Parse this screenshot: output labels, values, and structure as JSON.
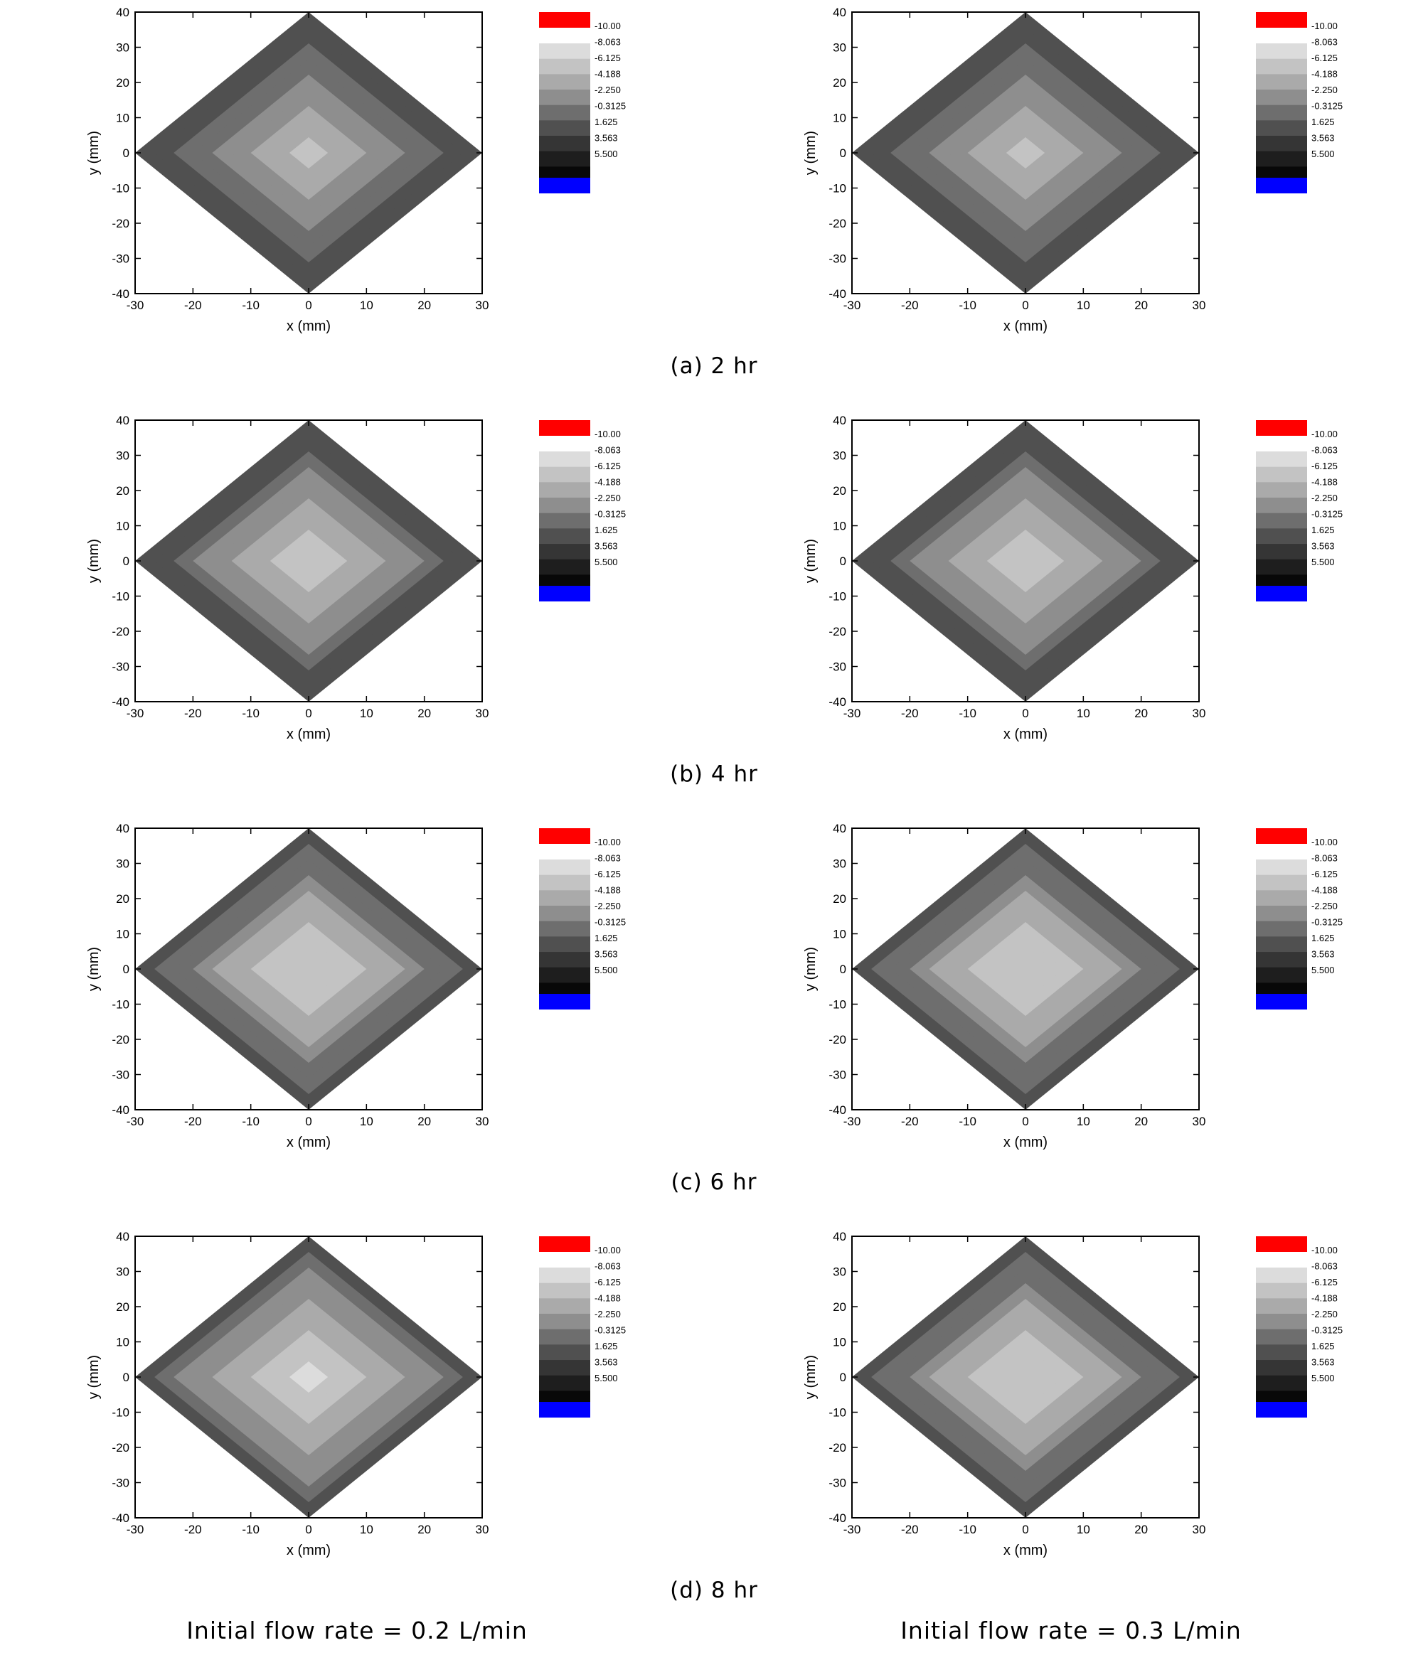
{
  "panels": [
    {
      "caption": "(a) 2 hr"
    },
    {
      "caption": "(b) 4 hr"
    },
    {
      "caption": "(c) 6 hr"
    },
    {
      "caption": "(d) 8 hr"
    }
  ],
  "footer": {
    "left": "Initial flow rate = 0.2 L/min",
    "right": "Initial flow rate = 0.3 L/min"
  },
  "legend": {
    "labels": [
      "-10.00",
      "-8.063",
      "-6.125",
      "-4.188",
      "-2.250",
      "-0.3125",
      "1.625",
      "3.563",
      "5.500"
    ],
    "top_color": "#ff0000",
    "bottom_color": "#0000ff",
    "gray_bands": [
      "#dcdcdc",
      "#c3c3c3",
      "#aaaaaa",
      "#8e8e8e",
      "#6e6e6e",
      "#505050",
      "#353535",
      "#1e1e1e",
      "#080808"
    ]
  },
  "chart_data": [
    {
      "type": "contour",
      "time": "2 hr",
      "flow_rate": "0.2 L/min",
      "xlabel": "x (mm)",
      "ylabel": "y (mm)",
      "xlim": [
        -30,
        30
      ],
      "ylim": [
        -40,
        40
      ],
      "xticks": [
        -30,
        -20,
        -10,
        0,
        10,
        20,
        30
      ],
      "yticks": [
        -40,
        -30,
        -20,
        -10,
        0,
        10,
        20,
        30,
        40
      ],
      "center_value": -6.5,
      "rim_value": 2.0,
      "contour_levels": [
        -10.0,
        -8.063,
        -6.125,
        -4.188,
        -2.25,
        -0.3125,
        1.625,
        3.563,
        5.5
      ]
    },
    {
      "type": "contour",
      "time": "2 hr",
      "flow_rate": "0.3 L/min",
      "xlabel": "x (mm)",
      "ylabel": "y (mm)",
      "xlim": [
        -30,
        30
      ],
      "ylim": [
        -40,
        40
      ],
      "xticks": [
        -30,
        -20,
        -10,
        0,
        10,
        20,
        30
      ],
      "yticks": [
        -40,
        -30,
        -20,
        -10,
        0,
        10,
        20,
        30,
        40
      ],
      "center_value": -6.5,
      "rim_value": 2.0,
      "contour_levels": [
        -10.0,
        -8.063,
        -6.125,
        -4.188,
        -2.25,
        -0.3125,
        1.625,
        3.563,
        5.5
      ]
    },
    {
      "type": "contour",
      "time": "4 hr",
      "flow_rate": "0.2 L/min",
      "xlabel": "x (mm)",
      "ylabel": "y (mm)",
      "xlim": [
        -30,
        30
      ],
      "ylim": [
        -40,
        40
      ],
      "xticks": [
        -30,
        -20,
        -10,
        0,
        10,
        20,
        30
      ],
      "yticks": [
        -40,
        -30,
        -20,
        -10,
        0,
        10,
        20,
        30,
        40
      ],
      "center_value": -7.5,
      "rim_value": 1.8,
      "contour_levels": [
        -10.0,
        -8.063,
        -6.125,
        -4.188,
        -2.25,
        -0.3125,
        1.625,
        3.563,
        5.5
      ]
    },
    {
      "type": "contour",
      "time": "4 hr",
      "flow_rate": "0.3 L/min",
      "xlabel": "x (mm)",
      "ylabel": "y (mm)",
      "xlim": [
        -30,
        30
      ],
      "ylim": [
        -40,
        40
      ],
      "xticks": [
        -30,
        -20,
        -10,
        0,
        10,
        20,
        30
      ],
      "yticks": [
        -40,
        -30,
        -20,
        -10,
        0,
        10,
        20,
        30,
        40
      ],
      "center_value": -7.5,
      "rim_value": 1.8,
      "contour_levels": [
        -10.0,
        -8.063,
        -6.125,
        -4.188,
        -2.25,
        -0.3125,
        1.625,
        3.563,
        5.5
      ]
    },
    {
      "type": "contour",
      "time": "6 hr",
      "flow_rate": "0.2 L/min",
      "xlabel": "x (mm)",
      "ylabel": "y (mm)",
      "xlim": [
        -30,
        30
      ],
      "ylim": [
        -40,
        40
      ],
      "xticks": [
        -30,
        -20,
        -10,
        0,
        10,
        20,
        30
      ],
      "yticks": [
        -40,
        -30,
        -20,
        -10,
        0,
        10,
        20,
        30,
        40
      ],
      "center_value": -8.0,
      "rim_value": 1.0,
      "contour_levels": [
        -10.0,
        -8.063,
        -6.125,
        -4.188,
        -2.25,
        -0.3125,
        1.625,
        3.563,
        5.5
      ]
    },
    {
      "type": "contour",
      "time": "6 hr",
      "flow_rate": "0.3 L/min",
      "xlabel": "x (mm)",
      "ylabel": "y (mm)",
      "xlim": [
        -30,
        30
      ],
      "ylim": [
        -40,
        40
      ],
      "xticks": [
        -30,
        -20,
        -10,
        0,
        10,
        20,
        30
      ],
      "yticks": [
        -40,
        -30,
        -20,
        -10,
        0,
        10,
        20,
        30,
        40
      ],
      "center_value": -8.0,
      "rim_value": 1.0,
      "contour_levels": [
        -10.0,
        -8.063,
        -6.125,
        -4.188,
        -2.25,
        -0.3125,
        1.625,
        3.563,
        5.5
      ]
    },
    {
      "type": "contour",
      "time": "8 hr",
      "flow_rate": "0.2 L/min",
      "xlabel": "x (mm)",
      "ylabel": "y (mm)",
      "xlim": [
        -30,
        30
      ],
      "ylim": [
        -40,
        40
      ],
      "xticks": [
        -30,
        -20,
        -10,
        0,
        10,
        20,
        30
      ],
      "yticks": [
        -40,
        -30,
        -20,
        -10,
        0,
        10,
        20,
        30,
        40
      ],
      "center_value": -9.0,
      "rim_value": 0.5,
      "contour_levels": [
        -10.0,
        -8.063,
        -6.125,
        -4.188,
        -2.25,
        -0.3125,
        1.625,
        3.563,
        5.5
      ]
    },
    {
      "type": "contour",
      "time": "8 hr",
      "flow_rate": "0.3 L/min",
      "xlabel": "x (mm)",
      "ylabel": "y (mm)",
      "xlim": [
        -30,
        30
      ],
      "ylim": [
        -40,
        40
      ],
      "xticks": [
        -30,
        -20,
        -10,
        0,
        10,
        20,
        30
      ],
      "yticks": [
        -40,
        -30,
        -20,
        -10,
        0,
        10,
        20,
        30,
        40
      ],
      "center_value": -8.0,
      "rim_value": 0.8,
      "contour_levels": [
        -10.0,
        -8.063,
        -6.125,
        -4.188,
        -2.25,
        -0.3125,
        1.625,
        3.563,
        5.5
      ]
    }
  ]
}
